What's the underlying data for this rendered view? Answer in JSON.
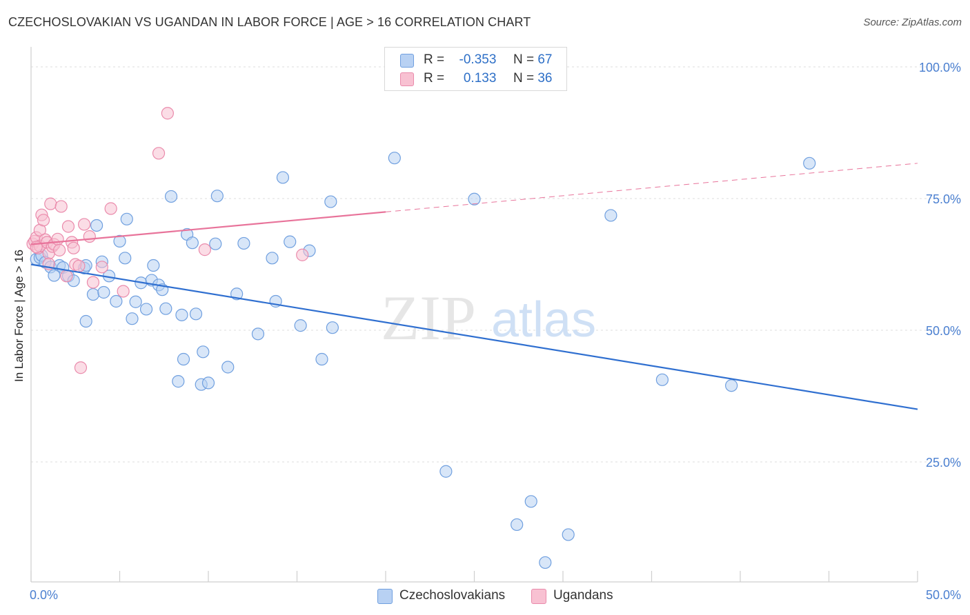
{
  "title": "CZECHOSLOVAKIAN VS UGANDAN IN LABOR FORCE | AGE > 16 CORRELATION CHART",
  "source": "Source: ZipAtlas.com",
  "watermark": {
    "zip": "ZIP",
    "atlas": "atlas"
  },
  "legend": {
    "rows": [
      {
        "r_label": "R =",
        "r_value": "-0.353",
        "n_label": "N =",
        "n_value": "67"
      },
      {
        "r_label": "R =",
        "r_value": "0.133",
        "n_label": "N =",
        "n_value": "36"
      }
    ]
  },
  "bottom_legend": [
    "Czechoslovakians",
    "Ugandans"
  ],
  "colors": {
    "czech_fill": "#b8d1f3",
    "czech_stroke": "#6f9fdf",
    "czech_line": "#2f6fd0",
    "ugandan_fill": "#f8c1d2",
    "ugandan_stroke": "#ea8aab",
    "ugandan_line": "#e8739a",
    "grid": "#dddddd",
    "axis_text": "#4a7fd0"
  },
  "chart_data": {
    "type": "scatter",
    "title": "CZECHOSLOVAKIAN VS UGANDAN IN LABOR FORCE | AGE > 16 CORRELATION CHART",
    "xlabel": "",
    "ylabel": "In Labor Force | Age > 16",
    "xlim": [
      0,
      50
    ],
    "ylim": [
      0,
      105
    ],
    "x_tick_labels": [
      "0.0%",
      "50.0%"
    ],
    "y_ticks": [
      25,
      50,
      75,
      100
    ],
    "y_tick_labels": [
      "25.0%",
      "50.0%",
      "75.0%",
      "100.0%"
    ],
    "grid": true,
    "series": [
      {
        "name": "Czechoslovakians",
        "r": -0.353,
        "n": 67,
        "trend": {
          "x": [
            0,
            50
          ],
          "y": [
            62.5,
            35.0
          ],
          "dash_from": null
        },
        "points": [
          [
            0.3,
            63.5
          ],
          [
            0.5,
            63.8
          ],
          [
            0.6,
            64.2
          ],
          [
            0.8,
            62.9
          ],
          [
            1.1,
            62.0
          ],
          [
            1.3,
            60.4
          ],
          [
            1.6,
            62.3
          ],
          [
            1.8,
            61.9
          ],
          [
            2.1,
            60.3
          ],
          [
            2.4,
            59.4
          ],
          [
            3.0,
            61.8
          ],
          [
            3.1,
            51.7
          ],
          [
            3.1,
            62.3
          ],
          [
            3.5,
            56.8
          ],
          [
            3.7,
            69.9
          ],
          [
            4.0,
            63.0
          ],
          [
            4.1,
            57.2
          ],
          [
            4.4,
            60.3
          ],
          [
            4.8,
            55.5
          ],
          [
            5.0,
            66.9
          ],
          [
            5.3,
            63.7
          ],
          [
            5.4,
            71.1
          ],
          [
            5.7,
            52.2
          ],
          [
            5.9,
            55.4
          ],
          [
            6.2,
            59.0
          ],
          [
            6.5,
            54.0
          ],
          [
            6.8,
            59.5
          ],
          [
            6.9,
            62.3
          ],
          [
            7.2,
            58.6
          ],
          [
            7.4,
            57.7
          ],
          [
            7.6,
            54.1
          ],
          [
            7.9,
            75.4
          ],
          [
            8.3,
            40.3
          ],
          [
            8.5,
            52.9
          ],
          [
            8.6,
            44.5
          ],
          [
            8.8,
            68.2
          ],
          [
            9.1,
            66.6
          ],
          [
            9.3,
            53.1
          ],
          [
            9.6,
            39.7
          ],
          [
            9.7,
            45.9
          ],
          [
            10.0,
            40.0
          ],
          [
            10.4,
            66.4
          ],
          [
            10.5,
            75.5
          ],
          [
            11.1,
            43.0
          ],
          [
            11.6,
            56.9
          ],
          [
            12.0,
            66.5
          ],
          [
            12.8,
            49.3
          ],
          [
            13.6,
            63.7
          ],
          [
            13.8,
            55.5
          ],
          [
            14.2,
            79.0
          ],
          [
            14.6,
            66.8
          ],
          [
            15.2,
            50.9
          ],
          [
            15.7,
            65.1
          ],
          [
            16.4,
            44.5
          ],
          [
            16.9,
            74.4
          ],
          [
            17.0,
            50.5
          ],
          [
            20.5,
            82.7
          ],
          [
            23.4,
            23.2
          ],
          [
            25.0,
            74.9
          ],
          [
            27.4,
            13.1
          ],
          [
            28.2,
            17.5
          ],
          [
            29.0,
            5.9
          ],
          [
            30.3,
            11.2
          ],
          [
            32.7,
            71.8
          ],
          [
            35.6,
            40.6
          ],
          [
            39.5,
            39.5
          ],
          [
            43.9,
            81.7
          ]
        ]
      },
      {
        "name": "Ugandans",
        "r": 0.133,
        "n": 36,
        "trend": {
          "x": [
            0,
            50
          ],
          "y": [
            66.3,
            81.7
          ],
          "dash_from": 20.0
        },
        "points": [
          [
            0.1,
            66.4
          ],
          [
            0.2,
            66.9
          ],
          [
            0.3,
            67.6
          ],
          [
            0.4,
            65.6
          ],
          [
            0.5,
            66.0
          ],
          [
            0.5,
            69.0
          ],
          [
            0.6,
            71.9
          ],
          [
            0.7,
            70.9
          ],
          [
            0.8,
            67.2
          ],
          [
            0.9,
            66.7
          ],
          [
            1.0,
            64.6
          ],
          [
            1.0,
            62.6
          ],
          [
            1.1,
            74.0
          ],
          [
            1.2,
            65.9
          ],
          [
            1.3,
            66.3
          ],
          [
            1.5,
            67.3
          ],
          [
            1.6,
            65.2
          ],
          [
            1.7,
            73.5
          ],
          [
            2.0,
            60.3
          ],
          [
            2.1,
            69.7
          ],
          [
            2.3,
            66.7
          ],
          [
            2.4,
            65.6
          ],
          [
            2.5,
            62.5
          ],
          [
            2.7,
            62.2
          ],
          [
            2.8,
            42.9
          ],
          [
            3.0,
            70.1
          ],
          [
            3.3,
            67.8
          ],
          [
            3.5,
            59.1
          ],
          [
            4.0,
            62.0
          ],
          [
            4.5,
            73.1
          ],
          [
            5.2,
            57.4
          ],
          [
            7.2,
            83.6
          ],
          [
            7.7,
            91.2
          ],
          [
            9.8,
            65.3
          ],
          [
            15.3,
            64.3
          ],
          [
            0.3,
            65.8
          ]
        ]
      }
    ]
  }
}
